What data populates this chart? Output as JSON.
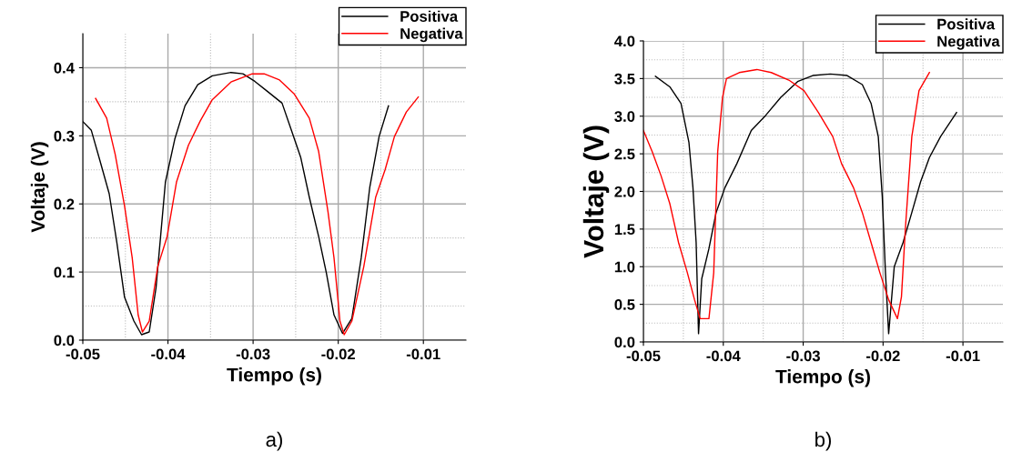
{
  "chart_data": [
    {
      "type": "line",
      "xlabel": "Tiempo (s)",
      "ylabel": "Voltaje (V)",
      "xlim": [
        -0.05,
        -0.005
      ],
      "ylim": [
        0,
        0.45
      ],
      "xticks": [
        -0.05,
        -0.04,
        -0.03,
        -0.02,
        -0.01
      ],
      "yticks": [
        {
          "value": 0,
          "label": "0.0"
        },
        0.1,
        0.2,
        0.3,
        0.4
      ],
      "grid": true,
      "legend": "top right",
      "annotations": [
        "a)"
      ],
      "series": [
        {
          "name": "Positiva",
          "color": "#000000",
          "x": [
            -0.05,
            -0.049,
            -0.048,
            -0.0469,
            -0.046,
            -0.0451,
            -0.044,
            -0.0431,
            -0.0422,
            -0.0414,
            -0.0403,
            -0.0392,
            -0.038,
            -0.0365,
            -0.0348,
            -0.0326,
            -0.0312,
            -0.0298,
            -0.0284,
            -0.0266,
            -0.0255,
            -0.0244,
            -0.0234,
            -0.0223,
            -0.0214,
            -0.0205,
            -0.0195,
            -0.0184,
            -0.0173,
            -0.0163,
            -0.0152,
            -0.0141
          ],
          "values": [
            0.321,
            0.308,
            0.264,
            0.215,
            0.143,
            0.063,
            0.028,
            0.008,
            0.012,
            0.077,
            0.232,
            0.295,
            0.344,
            0.375,
            0.388,
            0.393,
            0.391,
            0.38,
            0.366,
            0.348,
            0.308,
            0.268,
            0.21,
            0.152,
            0.099,
            0.037,
            0.01,
            0.032,
            0.121,
            0.224,
            0.299,
            0.344
          ]
        },
        {
          "name": "Negativa",
          "color": "#ff0000",
          "x": [
            -0.0485,
            -0.0472,
            -0.0462,
            -0.0451,
            -0.0442,
            -0.0435,
            -0.043,
            -0.0422,
            -0.0412,
            -0.0401,
            -0.039,
            -0.0376,
            -0.0362,
            -0.0348,
            -0.0326,
            -0.0301,
            -0.0287,
            -0.0269,
            -0.0252,
            -0.0234,
            -0.0223,
            -0.0212,
            -0.0205,
            -0.0198,
            -0.0193,
            -0.0184,
            -0.017,
            -0.0156,
            -0.0145,
            -0.0134,
            -0.012,
            -0.0106
          ],
          "values": [
            0.355,
            0.326,
            0.273,
            0.197,
            0.121,
            0.037,
            0.012,
            0.028,
            0.108,
            0.152,
            0.232,
            0.286,
            0.322,
            0.353,
            0.379,
            0.391,
            0.391,
            0.382,
            0.362,
            0.326,
            0.277,
            0.188,
            0.121,
            0.028,
            0.008,
            0.028,
            0.108,
            0.21,
            0.25,
            0.299,
            0.335,
            0.357
          ]
        }
      ]
    },
    {
      "type": "line",
      "xlabel": "Tiempo (s)",
      "ylabel": "Voltaje (V)",
      "xlim": [
        -0.05,
        -0.005
      ],
      "ylim": [
        0,
        4
      ],
      "xticks": [
        -0.05,
        -0.04,
        -0.03,
        -0.02,
        -0.01
      ],
      "yticks": [
        {
          "value": 0,
          "label": "0.0"
        },
        0.5,
        {
          "value": 1,
          "label": "1.0"
        },
        1.5,
        {
          "value": 2,
          "label": "2.0"
        },
        2.5,
        {
          "value": 3,
          "label": "3.0"
        },
        3.5,
        {
          "value": 4,
          "label": "4.0"
        }
      ],
      "grid": true,
      "legend": "top right",
      "annotations": [
        "b)"
      ],
      "series": [
        {
          "name": "Positiva",
          "color": "#000000",
          "x": [
            -0.0485,
            -0.0467,
            -0.0453,
            -0.0443,
            -0.0438,
            -0.0434,
            -0.0431,
            -0.0427,
            -0.0418,
            -0.0409,
            -0.0398,
            -0.0383,
            -0.0365,
            -0.0347,
            -0.0328,
            -0.0307,
            -0.0288,
            -0.0266,
            -0.0245,
            -0.0226,
            -0.0215,
            -0.0206,
            -0.0201,
            -0.0197,
            -0.0193,
            -0.0186,
            -0.0175,
            -0.0164,
            -0.0153,
            -0.0142,
            -0.0128,
            -0.0108
          ],
          "values": [
            3.53,
            3.39,
            3.17,
            2.65,
            2.05,
            1.32,
            0.11,
            0.84,
            1.24,
            1.72,
            2.05,
            2.37,
            2.81,
            3.01,
            3.25,
            3.46,
            3.54,
            3.56,
            3.54,
            3.42,
            3.17,
            2.73,
            1.93,
            0.92,
            0.11,
            1.0,
            1.32,
            1.72,
            2.13,
            2.45,
            2.73,
            3.05
          ]
        },
        {
          "name": "Negativa",
          "color": "#ff0000",
          "x": [
            -0.05,
            -0.0489,
            -0.0478,
            -0.0467,
            -0.0456,
            -0.0445,
            -0.0436,
            -0.0429,
            -0.0418,
            -0.0412,
            -0.0407,
            -0.0401,
            -0.0396,
            -0.038,
            -0.0358,
            -0.034,
            -0.0318,
            -0.0299,
            -0.0281,
            -0.0263,
            -0.0252,
            -0.0237,
            -0.0226,
            -0.0215,
            -0.0204,
            -0.0193,
            -0.0182,
            -0.0177,
            -0.0172,
            -0.0164,
            -0.0155,
            -0.0142
          ],
          "values": [
            2.81,
            2.53,
            2.21,
            1.84,
            1.32,
            0.92,
            0.56,
            0.31,
            0.31,
            0.92,
            2.53,
            3.25,
            3.5,
            3.58,
            3.62,
            3.58,
            3.48,
            3.34,
            3.05,
            2.73,
            2.37,
            2.05,
            1.72,
            1.32,
            0.92,
            0.56,
            0.31,
            0.6,
            1.52,
            2.73,
            3.34,
            3.58
          ]
        }
      ]
    }
  ]
}
